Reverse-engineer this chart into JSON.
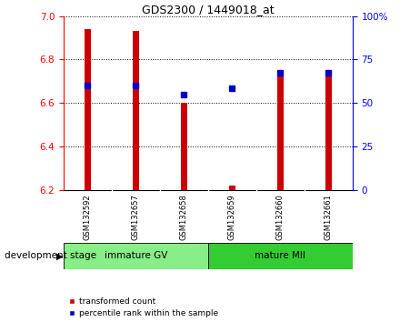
{
  "title": "GDS2300 / 1449018_at",
  "samples": [
    "GSM132592",
    "GSM132657",
    "GSM132658",
    "GSM132659",
    "GSM132660",
    "GSM132661"
  ],
  "red_bar_bottom": 6.2,
  "red_bar_top": [
    6.94,
    6.93,
    6.6,
    6.22,
    6.73,
    6.73
  ],
  "blue_dot_y": [
    6.68,
    6.68,
    6.64,
    6.67,
    6.74,
    6.74
  ],
  "ylim": [
    6.2,
    7.0
  ],
  "yticks_left": [
    6.2,
    6.4,
    6.6,
    6.8,
    7
  ],
  "yticks_right": [
    0,
    25,
    50,
    75,
    100
  ],
  "groups": [
    {
      "label": "immature GV",
      "samples": [
        0,
        1,
        2
      ],
      "color": "#88ee88"
    },
    {
      "label": "mature MII",
      "samples": [
        3,
        4,
        5
      ],
      "color": "#33cc33"
    }
  ],
  "group_label_prefix": "development stage",
  "bar_color": "#cc0000",
  "dot_color": "#0000cc",
  "tick_area_color": "#c8c8c8",
  "legend_entries": [
    "transformed count",
    "percentile rank within the sample"
  ]
}
